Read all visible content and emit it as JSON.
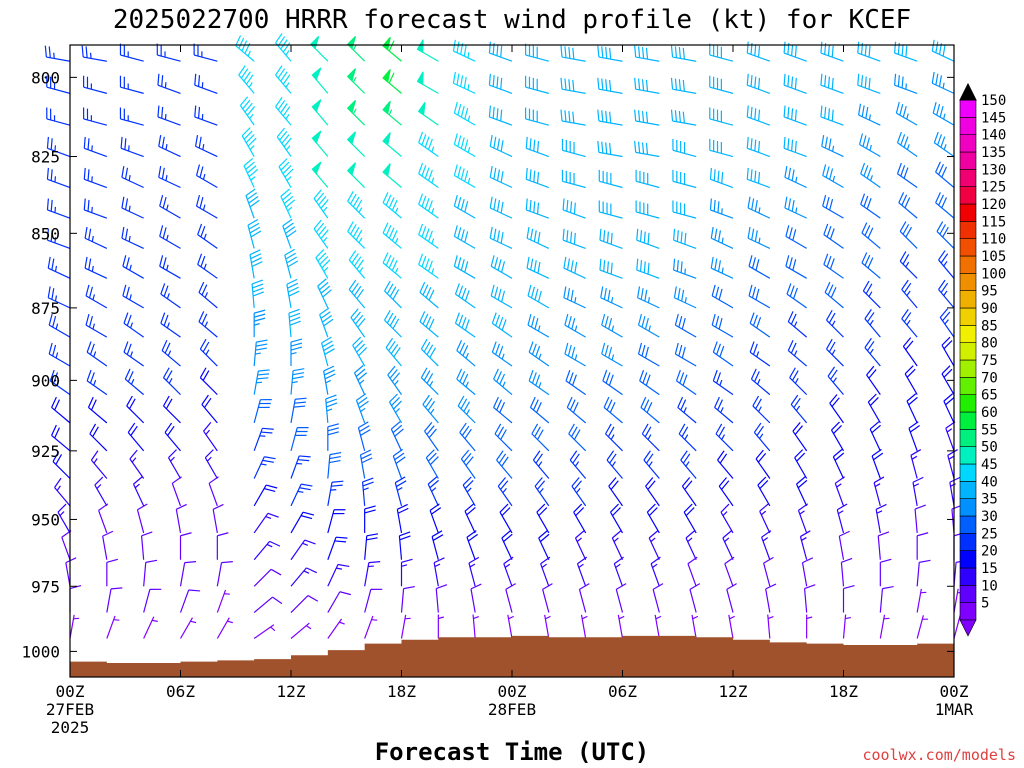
{
  "chart_data": {
    "type": "wind-barb-time-height",
    "title": "2025022700 HRRR forecast wind profile (kt) for KCEF",
    "xlabel": "Forecast Time (UTC)",
    "ylabel": "",
    "credit": "coolwx.com/models",
    "y_axis": {
      "ticks": [
        "800",
        "825",
        "850",
        "875",
        "900",
        "925",
        "950",
        "975",
        "1000"
      ],
      "range_hpa": [
        1010,
        790
      ],
      "log_pressure": true
    },
    "x_axis": {
      "range_hours": [
        0,
        48
      ],
      "ticks": [
        {
          "hour": 0,
          "lines": [
            "00Z",
            "27FEB",
            "2025"
          ]
        },
        {
          "hour": 6,
          "lines": [
            "06Z"
          ]
        },
        {
          "hour": 12,
          "lines": [
            "12Z"
          ]
        },
        {
          "hour": 18,
          "lines": [
            "18Z"
          ]
        },
        {
          "hour": 24,
          "lines": [
            "00Z",
            "28FEB"
          ]
        },
        {
          "hour": 30,
          "lines": [
            "06Z"
          ]
        },
        {
          "hour": 36,
          "lines": [
            "12Z"
          ]
        },
        {
          "hour": 42,
          "lines": [
            "18Z"
          ]
        },
        {
          "hour": 48,
          "lines": [
            "00Z",
            "1MAR"
          ]
        }
      ]
    },
    "levels_hpa": [
      795,
      805,
      815,
      825,
      835,
      845,
      855,
      865,
      875,
      885,
      895,
      905,
      915,
      925,
      935,
      945,
      955,
      965,
      975,
      985,
      995
    ],
    "times_hours": [
      0,
      2,
      4,
      6,
      8,
      10,
      12,
      14,
      16,
      18,
      20,
      22,
      24,
      26,
      28,
      30,
      32,
      34,
      36,
      38,
      40,
      42,
      44,
      46,
      48
    ],
    "wind_direction_deg": [
      [
        280,
        280,
        285,
        285,
        285,
        310,
        320,
        315,
        315,
        310,
        300,
        295,
        290,
        285,
        280,
        280,
        280,
        280,
        285,
        290,
        290,
        290,
        290,
        290,
        295
      ],
      [
        285,
        285,
        285,
        290,
        290,
        320,
        320,
        320,
        315,
        310,
        300,
        295,
        290,
        285,
        280,
        280,
        280,
        280,
        285,
        290,
        290,
        290,
        290,
        290,
        295
      ],
      [
        285,
        285,
        285,
        290,
        290,
        325,
        320,
        320,
        315,
        310,
        305,
        300,
        290,
        285,
        280,
        280,
        280,
        280,
        285,
        290,
        290,
        290,
        295,
        300,
        300
      ],
      [
        290,
        290,
        290,
        295,
        295,
        330,
        325,
        320,
        315,
        310,
        305,
        300,
        295,
        290,
        285,
        280,
        280,
        285,
        285,
        290,
        290,
        295,
        300,
        305,
        305
      ],
      [
        290,
        290,
        295,
        295,
        300,
        335,
        330,
        320,
        315,
        310,
        305,
        300,
        295,
        290,
        285,
        285,
        285,
        285,
        290,
        290,
        295,
        300,
        305,
        305,
        310
      ],
      [
        290,
        290,
        295,
        300,
        300,
        340,
        335,
        325,
        315,
        310,
        305,
        300,
        295,
        290,
        290,
        285,
        285,
        285,
        290,
        295,
        295,
        300,
        305,
        310,
        310
      ],
      [
        290,
        295,
        295,
        300,
        305,
        345,
        340,
        325,
        315,
        310,
        305,
        300,
        295,
        295,
        290,
        290,
        290,
        290,
        295,
        295,
        300,
        305,
        310,
        315,
        315
      ],
      [
        295,
        295,
        300,
        300,
        305,
        350,
        345,
        330,
        320,
        310,
        305,
        300,
        300,
        295,
        295,
        290,
        290,
        290,
        295,
        300,
        300,
        305,
        310,
        315,
        320
      ],
      [
        295,
        300,
        300,
        305,
        310,
        355,
        350,
        335,
        320,
        315,
        310,
        305,
        300,
        300,
        295,
        295,
        295,
        295,
        300,
        300,
        305,
        310,
        315,
        320,
        320
      ],
      [
        300,
        300,
        305,
        305,
        310,
        0,
        355,
        340,
        325,
        315,
        310,
        305,
        305,
        300,
        300,
        300,
        300,
        300,
        300,
        305,
        310,
        315,
        320,
        320,
        325
      ],
      [
        300,
        305,
        305,
        310,
        315,
        5,
        0,
        345,
        330,
        320,
        315,
        310,
        305,
        305,
        300,
        300,
        300,
        300,
        305,
        305,
        310,
        315,
        320,
        325,
        330
      ],
      [
        305,
        305,
        310,
        315,
        315,
        10,
        5,
        350,
        335,
        325,
        315,
        310,
        310,
        305,
        305,
        305,
        305,
        305,
        305,
        310,
        315,
        320,
        325,
        330,
        330
      ],
      [
        310,
        310,
        315,
        315,
        320,
        15,
        10,
        355,
        340,
        330,
        320,
        315,
        310,
        310,
        310,
        310,
        310,
        310,
        310,
        315,
        320,
        325,
        330,
        335,
        335
      ],
      [
        310,
        315,
        320,
        320,
        325,
        20,
        15,
        0,
        345,
        335,
        325,
        320,
        315,
        315,
        315,
        315,
        315,
        315,
        315,
        320,
        325,
        330,
        335,
        340,
        340
      ],
      [
        315,
        320,
        325,
        330,
        330,
        25,
        20,
        5,
        350,
        340,
        330,
        325,
        320,
        320,
        320,
        320,
        320,
        320,
        320,
        325,
        330,
        335,
        340,
        345,
        345
      ],
      [
        320,
        330,
        335,
        340,
        340,
        30,
        25,
        10,
        355,
        345,
        335,
        330,
        325,
        325,
        325,
        325,
        325,
        325,
        325,
        330,
        335,
        340,
        345,
        350,
        350
      ],
      [
        330,
        340,
        345,
        350,
        350,
        35,
        30,
        15,
        0,
        350,
        340,
        335,
        330,
        330,
        330,
        330,
        330,
        330,
        330,
        335,
        340,
        345,
        350,
        355,
        355
      ],
      [
        340,
        350,
        355,
        0,
        0,
        40,
        35,
        20,
        5,
        355,
        345,
        340,
        335,
        335,
        335,
        335,
        335,
        335,
        335,
        340,
        345,
        350,
        355,
        0,
        0
      ],
      [
        350,
        0,
        5,
        10,
        10,
        45,
        40,
        25,
        10,
        0,
        350,
        345,
        340,
        340,
        340,
        340,
        340,
        340,
        340,
        345,
        350,
        355,
        0,
        5,
        5
      ],
      [
        0,
        10,
        15,
        20,
        20,
        50,
        45,
        30,
        15,
        5,
        355,
        350,
        345,
        345,
        345,
        345,
        345,
        345,
        345,
        350,
        355,
        0,
        5,
        10,
        10
      ],
      [
        10,
        20,
        25,
        30,
        30,
        55,
        50,
        35,
        20,
        10,
        0,
        355,
        350,
        350,
        350,
        350,
        350,
        350,
        350,
        355,
        0,
        5,
        10,
        15,
        15
      ]
    ],
    "wind_speed_kt": [
      [
        25,
        25,
        25,
        25,
        25,
        45,
        45,
        50,
        55,
        60,
        50,
        45,
        40,
        40,
        40,
        40,
        40,
        40,
        40,
        40,
        40,
        40,
        40,
        40,
        40
      ],
      [
        25,
        25,
        25,
        25,
        25,
        45,
        45,
        50,
        55,
        60,
        50,
        45,
        40,
        40,
        40,
        40,
        40,
        40,
        40,
        40,
        40,
        40,
        40,
        35,
        35
      ],
      [
        25,
        25,
        25,
        25,
        25,
        45,
        45,
        50,
        55,
        55,
        50,
        45,
        40,
        40,
        40,
        40,
        40,
        40,
        40,
        40,
        40,
        40,
        35,
        35,
        35
      ],
      [
        25,
        25,
        25,
        25,
        25,
        45,
        45,
        50,
        50,
        50,
        45,
        45,
        40,
        40,
        40,
        40,
        40,
        40,
        40,
        40,
        40,
        35,
        35,
        35,
        35
      ],
      [
        25,
        25,
        25,
        25,
        25,
        45,
        45,
        50,
        50,
        50,
        45,
        45,
        40,
        40,
        40,
        40,
        40,
        40,
        40,
        40,
        35,
        35,
        35,
        30,
        30
      ],
      [
        25,
        25,
        25,
        25,
        25,
        40,
        45,
        45,
        45,
        45,
        45,
        40,
        40,
        40,
        40,
        40,
        40,
        40,
        35,
        35,
        35,
        30,
        30,
        30,
        30
      ],
      [
        25,
        25,
        25,
        25,
        25,
        40,
        40,
        45,
        45,
        45,
        45,
        40,
        40,
        40,
        40,
        40,
        40,
        40,
        35,
        35,
        30,
        30,
        30,
        30,
        30
      ],
      [
        25,
        25,
        25,
        25,
        25,
        40,
        40,
        45,
        45,
        45,
        45,
        40,
        40,
        40,
        40,
        40,
        40,
        35,
        35,
        30,
        30,
        30,
        30,
        25,
        25
      ],
      [
        25,
        25,
        25,
        25,
        25,
        40,
        40,
        40,
        40,
        40,
        40,
        40,
        40,
        40,
        35,
        35,
        35,
        35,
        30,
        30,
        30,
        30,
        25,
        25,
        25
      ],
      [
        25,
        25,
        25,
        25,
        25,
        35,
        40,
        40,
        40,
        40,
        40,
        40,
        40,
        35,
        35,
        35,
        35,
        30,
        30,
        30,
        25,
        25,
        25,
        25,
        25
      ],
      [
        25,
        25,
        25,
        25,
        25,
        35,
        35,
        40,
        40,
        40,
        40,
        35,
        35,
        35,
        35,
        35,
        30,
        30,
        30,
        25,
        25,
        25,
        25,
        20,
        20
      ],
      [
        25,
        25,
        25,
        25,
        20,
        35,
        35,
        35,
        35,
        35,
        35,
        35,
        35,
        35,
        30,
        30,
        30,
        30,
        25,
        25,
        25,
        25,
        20,
        20,
        20
      ],
      [
        20,
        20,
        20,
        20,
        20,
        30,
        30,
        35,
        35,
        35,
        35,
        35,
        30,
        30,
        30,
        30,
        30,
        25,
        25,
        25,
        25,
        20,
        20,
        20,
        20
      ],
      [
        20,
        20,
        20,
        20,
        15,
        25,
        30,
        30,
        30,
        30,
        30,
        30,
        30,
        30,
        30,
        25,
        25,
        25,
        25,
        25,
        20,
        20,
        20,
        20,
        15
      ],
      [
        20,
        15,
        15,
        15,
        15,
        25,
        25,
        30,
        30,
        30,
        30,
        30,
        30,
        25,
        25,
        25,
        25,
        25,
        20,
        20,
        20,
        20,
        20,
        15,
        15
      ],
      [
        15,
        15,
        15,
        10,
        10,
        20,
        25,
        25,
        25,
        25,
        25,
        25,
        25,
        25,
        25,
        20,
        20,
        20,
        20,
        20,
        20,
        15,
        15,
        15,
        15
      ],
      [
        15,
        10,
        10,
        10,
        10,
        15,
        20,
        20,
        20,
        20,
        20,
        20,
        20,
        20,
        20,
        20,
        20,
        20,
        15,
        15,
        15,
        15,
        15,
        10,
        10
      ],
      [
        10,
        10,
        10,
        10,
        10,
        15,
        15,
        20,
        20,
        20,
        20,
        20,
        20,
        20,
        15,
        15,
        15,
        15,
        15,
        15,
        15,
        10,
        10,
        10,
        10
      ],
      [
        10,
        10,
        10,
        10,
        10,
        10,
        15,
        15,
        15,
        15,
        15,
        15,
        15,
        15,
        15,
        15,
        15,
        10,
        10,
        10,
        10,
        10,
        10,
        10,
        10
      ],
      [
        10,
        10,
        10,
        10,
        5,
        10,
        10,
        10,
        10,
        10,
        10,
        10,
        10,
        10,
        10,
        10,
        10,
        10,
        10,
        10,
        10,
        10,
        10,
        5,
        5
      ],
      [
        5,
        5,
        5,
        5,
        5,
        5,
        5,
        5,
        5,
        5,
        5,
        5,
        5,
        5,
        5,
        5,
        5,
        5,
        5,
        5,
        5,
        5,
        5,
        5,
        5
      ]
    ],
    "surface_pressure_hpa": {
      "hours": [
        0,
        2,
        4,
        6,
        8,
        10,
        12,
        14,
        16,
        18,
        20,
        22,
        24,
        26,
        28,
        30,
        32,
        34,
        36,
        38,
        40,
        42,
        44,
        46,
        48
      ],
      "values": [
        1004,
        1004.5,
        1004.5,
        1004,
        1003.5,
        1003,
        1001.5,
        999.5,
        997,
        995.5,
        994.5,
        994.5,
        994,
        994.5,
        994.5,
        994,
        994,
        994.5,
        995.5,
        996.5,
        997,
        997.5,
        997.5,
        997,
        996.5
      ]
    },
    "surface_color": "#a0522d",
    "colorbar": {
      "labels": [
        "5",
        "10",
        "15",
        "20",
        "25",
        "30",
        "35",
        "40",
        "45",
        "50",
        "55",
        "60",
        "65",
        "70",
        "75",
        "80",
        "85",
        "90",
        "95",
        "100",
        "105",
        "110",
        "115",
        "120",
        "125",
        "130",
        "135",
        "140",
        "145",
        "150"
      ],
      "colors": [
        "#8000ff",
        "#6000ff",
        "#3000ff",
        "#0000ff",
        "#0030ff",
        "#0060ff",
        "#0090ff",
        "#00b4ff",
        "#00d8ff",
        "#00f0c0",
        "#00f080",
        "#00f040",
        "#20f000",
        "#60f000",
        "#a0f000",
        "#d0f000",
        "#f0f000",
        "#f0d000",
        "#f0b000",
        "#f09000",
        "#f07000",
        "#f05000",
        "#f03000",
        "#f00000",
        "#f00040",
        "#f00070",
        "#f000a0",
        "#f000c0",
        "#f000e0",
        "#f000ff"
      ]
    }
  }
}
